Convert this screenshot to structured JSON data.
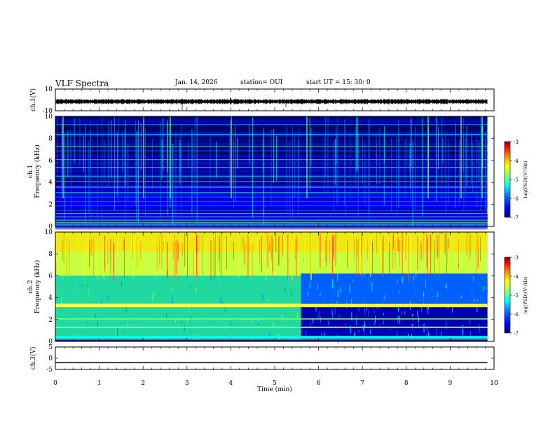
{
  "header": {
    "title": "VLF Spectra",
    "date": "Jan. 14, 2026",
    "station": "station= OUI",
    "start": "start  UT =  15: 30: 0"
  },
  "colors": {
    "colormap": [
      "#00007f",
      "#0000ff",
      "#0080ff",
      "#00ffff",
      "#7fff7f",
      "#ffff00",
      "#ff8000",
      "#ff0000",
      "#7f0000"
    ]
  },
  "chart_data": [
    {
      "type": "line",
      "name": "ch1-waveform",
      "ylabel": "ch.1(V)",
      "ylim": [
        -10,
        10
      ],
      "yticks": [
        "10",
        "-10"
      ],
      "xlim": [
        0,
        10
      ],
      "baseline": -1.5
    },
    {
      "type": "heatmap",
      "name": "ch1-spectrogram",
      "ylabel": "ch.1\nFrequency (kHz)",
      "ylim": [
        0,
        10
      ],
      "yticks": [
        "10",
        "8",
        "6",
        "4",
        "2",
        "0"
      ],
      "xlim": [
        0,
        10
      ],
      "data_end_min": 9.85,
      "colorbar": {
        "label": "log(PSD)(V²/Hz)",
        "range": [
          -7,
          -3
        ],
        "ticks": [
          "-3",
          "-4",
          "-5",
          "-6",
          "-7"
        ]
      }
    },
    {
      "type": "heatmap",
      "name": "ch2-spectrogram",
      "ylabel": "ch.2\nFrequency (kHz)",
      "ylim": [
        0,
        10
      ],
      "yticks": [
        "10",
        "8",
        "6",
        "4",
        "2",
        "0"
      ],
      "xlim": [
        0,
        10
      ],
      "data_end_min": 9.85,
      "transition_min": 5.6,
      "colorbar": {
        "label": "log(PSD)(V²/Hz)",
        "range": [
          -7,
          -3
        ],
        "ticks": [
          "-3",
          "-4",
          "-5",
          "-6",
          "-7"
        ]
      }
    },
    {
      "type": "line",
      "name": "ch3-waveform",
      "ylabel": "ch.3(V)",
      "ylim": [
        -5,
        5
      ],
      "yticks": [
        "5",
        "0",
        "-5"
      ],
      "xlim": [
        0,
        10
      ],
      "baseline": -2
    }
  ],
  "xaxis": {
    "label": "Time (min)",
    "ticks": [
      "0",
      "1",
      "2",
      "3",
      "4",
      "5",
      "6",
      "7",
      "8",
      "9",
      "10"
    ]
  }
}
